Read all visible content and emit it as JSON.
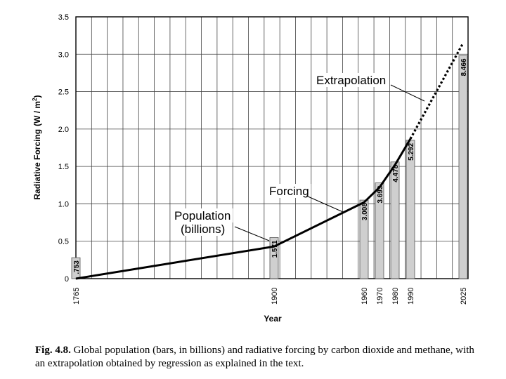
{
  "chart_data": {
    "type": "bar",
    "title": "",
    "xlabel": "Year",
    "ylabel": "Radiative Forcing (W / m2)",
    "ylabel_main": "Radiative Forcing",
    "ylabel_units": "(W / m",
    "ylabel_sup": "2",
    "ylabel_close": ")",
    "ylim": [
      0,
      3.5
    ],
    "yticks": [
      "0",
      "0.5",
      "1.0",
      "1.5",
      "2.0",
      "2.5",
      "3.0",
      "3.5"
    ],
    "ytick_values": [
      0,
      0.5,
      1.0,
      1.5,
      2.0,
      2.5,
      3.0,
      3.5
    ],
    "xlim": [
      1765,
      2030
    ],
    "grid": true,
    "population_bars": {
      "name": "Population (billions)",
      "x": [
        1765,
        1900,
        1960,
        1970,
        1980,
        1990,
        2025
      ],
      "x_labels": [
        "1765",
        "1900",
        "1960",
        "1970",
        "1980",
        "1990",
        "2025"
      ],
      "bar_heights_forcing_units": [
        0.28,
        0.55,
        1.05,
        1.28,
        1.56,
        1.85,
        2.98
      ],
      "labels": [
        ".753",
        "1.571",
        "3.008",
        "3.693",
        "4.478",
        "5.292",
        "8.466"
      ]
    },
    "forcing_line": {
      "name": "Forcing",
      "x": [
        1765,
        1900,
        1960,
        1970,
        1980,
        1990
      ],
      "y": [
        0.0,
        0.43,
        1.02,
        1.22,
        1.52,
        1.87
      ]
    },
    "extrapolation": {
      "name": "Extrapolation",
      "x": [
        1990,
        2025
      ],
      "y": [
        1.87,
        3.15
      ]
    },
    "annotations": {
      "population_line1": "Population",
      "population_line2": "(billions)",
      "forcing": "Forcing",
      "extrapolation": "Extrapolation"
    }
  },
  "caption": {
    "label": "Fig. 4.8.",
    "text": " Global population (bars, in billions) and radiative forcing by carbon dioxide and methane, with an extrapolation obtained by regression as explained in the text."
  }
}
